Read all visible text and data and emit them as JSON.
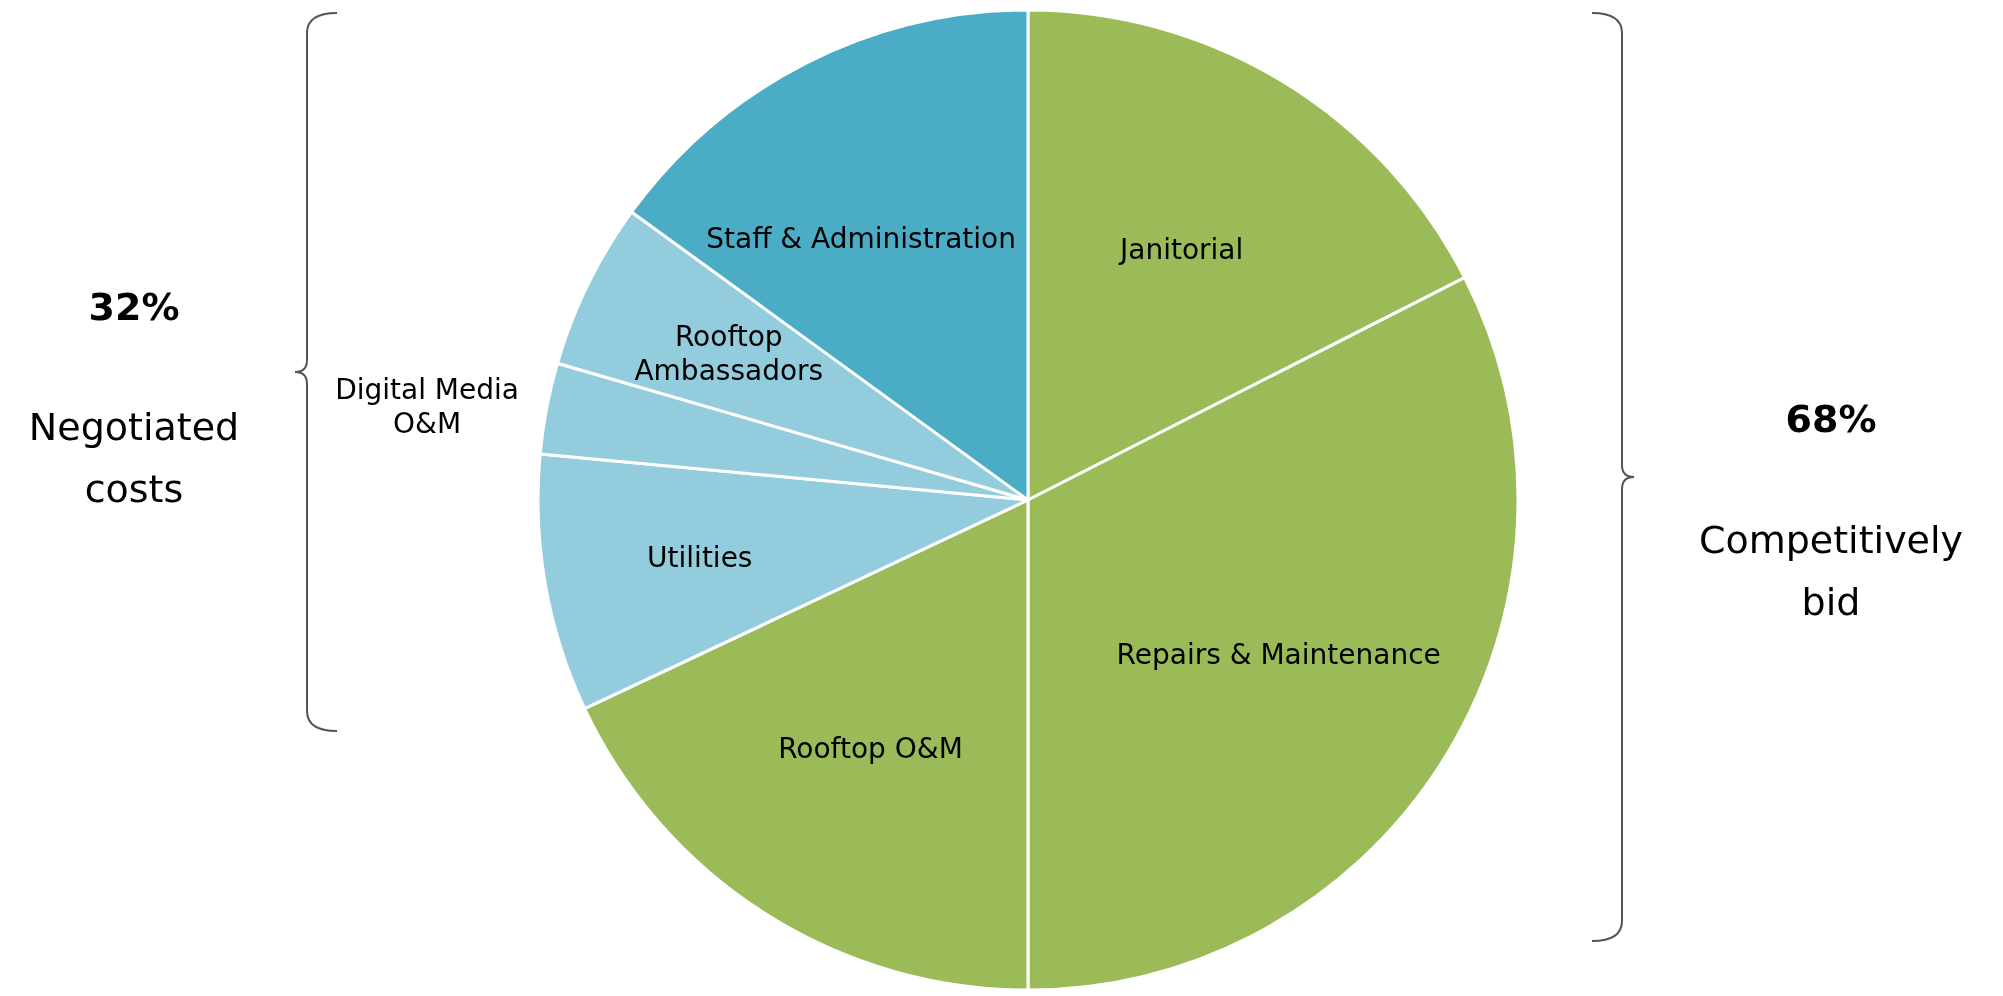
{
  "chart_data": {
    "type": "pie",
    "categories": [
      "Janitorial",
      "Repairs & Maintenance",
      "Rooftop O&M",
      "Utilities",
      "Digital Media O&M",
      "Rooftop Ambassadors",
      "Staff & Administration"
    ],
    "values": [
      17.5,
      32.5,
      18,
      8.5,
      3,
      5.5,
      15
    ],
    "colors": [
      "#9bbb59",
      "#9bbb59",
      "#9bbb59",
      "#93cddd",
      "#93cddd",
      "#93cddd",
      "#4bacc6"
    ],
    "annotations": [
      "32%",
      "Negotiated costs",
      "68%",
      "Competitively bid"
    ]
  }
}
